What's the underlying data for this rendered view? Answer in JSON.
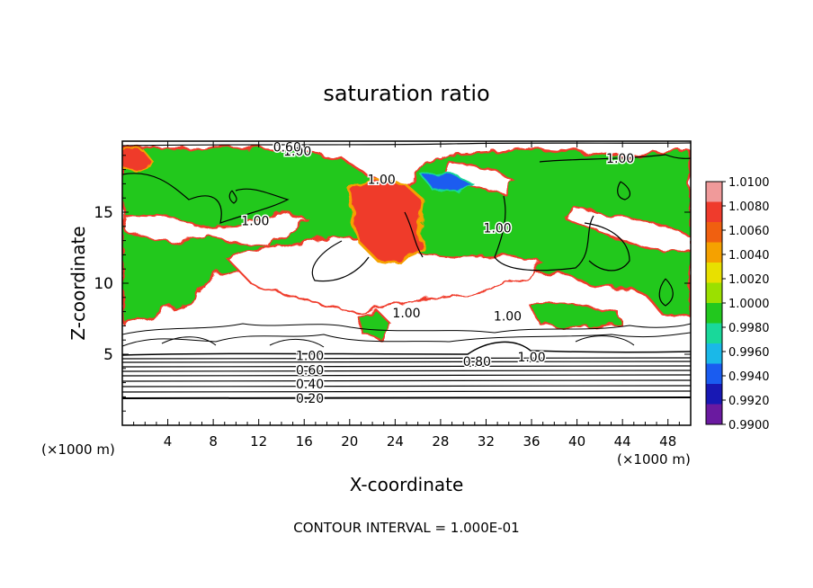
{
  "chart_data": {
    "type": "heatmap",
    "title": "saturation ratio",
    "xlabel": "X-coordinate",
    "ylabel": "Z-coordinate",
    "x_unit_left": "(×1000 m)",
    "x_unit_right": "(×1000 m)",
    "footer": "CONTOUR INTERVAL = 1.000E-01",
    "xlim": [
      0,
      50
    ],
    "ylim": [
      0,
      20
    ],
    "x_ticks": [
      4,
      8,
      12,
      16,
      20,
      24,
      28,
      32,
      36,
      40,
      44,
      48
    ],
    "y_ticks": [
      5,
      10,
      15
    ],
    "colorbar": {
      "levels": [
        "1.0100",
        "1.0080",
        "1.0060",
        "1.0040",
        "1.0020",
        "1.0000",
        "0.9980",
        "0.9960",
        "0.9940",
        "0.9920",
        "0.9900"
      ],
      "colors": [
        "#f09a9a",
        "#ef3b2c",
        "#f06010",
        "#f5a100",
        "#e8e000",
        "#9be000",
        "#22c81e",
        "#19d89a",
        "#1ab8e8",
        "#1a5cf0",
        "#1818b4",
        "#6a1aa0"
      ]
    },
    "contour_labels": [
      {
        "text": "1.00",
        "x": 15.4,
        "z": 19.3
      },
      {
        "text": "0.60",
        "x": 14.5,
        "z": 19.6
      },
      {
        "text": "1.00",
        "x": 43.8,
        "z": 18.8
      },
      {
        "text": "1.00",
        "x": 22.8,
        "z": 17.3
      },
      {
        "text": "1.00",
        "x": 11.7,
        "z": 14.4
      },
      {
        "text": "1.00",
        "x": 33.0,
        "z": 13.9
      },
      {
        "text": "1.00",
        "x": 25.0,
        "z": 7.9
      },
      {
        "text": "1.00",
        "x": 33.9,
        "z": 7.7
      },
      {
        "text": "1.00",
        "x": 16.5,
        "z": 4.9
      },
      {
        "text": "0.80",
        "x": 31.2,
        "z": 4.5
      },
      {
        "text": "1.00",
        "x": 36.0,
        "z": 4.8
      },
      {
        "text": "0.60",
        "x": 16.5,
        "z": 3.9
      },
      {
        "text": "0.40",
        "x": 16.5,
        "z": 2.9
      },
      {
        "text": "0.20",
        "x": 16.5,
        "z": 1.9
      }
    ]
  }
}
